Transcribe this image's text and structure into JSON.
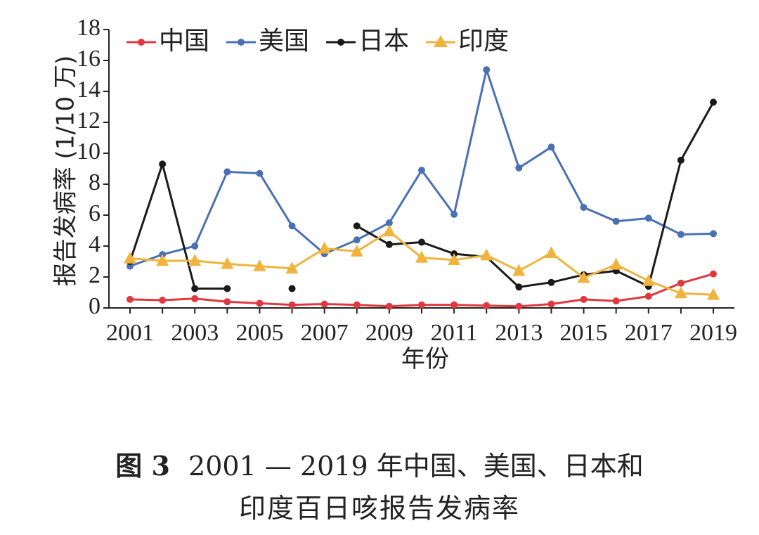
{
  "chart_data": {
    "type": "line",
    "xlabel": "年份",
    "ylabel": "报告发病率 (1/10 万)",
    "xlim": [
      2001,
      2019
    ],
    "ylim": [
      0,
      18
    ],
    "x_ticks": [
      "2001",
      "2003",
      "2005",
      "2007",
      "2009",
      "2011",
      "2013",
      "2015",
      "2017",
      "2019"
    ],
    "y_ticks": [
      "0",
      "2",
      "4",
      "6",
      "8",
      "10",
      "12",
      "14",
      "16",
      "18"
    ],
    "legend_position": "top",
    "grid": false,
    "x": [
      2001,
      2002,
      2003,
      2004,
      2005,
      2006,
      2007,
      2008,
      2009,
      2010,
      2011,
      2012,
      2013,
      2014,
      2015,
      2016,
      2017,
      2018,
      2019
    ],
    "series": [
      {
        "name": "中国",
        "color": "#e0383e",
        "marker": "circle",
        "values": [
          0.55,
          0.5,
          0.6,
          0.4,
          0.3,
          0.2,
          0.25,
          0.2,
          0.1,
          0.2,
          0.2,
          0.15,
          0.1,
          0.25,
          0.55,
          0.45,
          0.75,
          1.6,
          2.2
        ]
      },
      {
        "name": "美国",
        "color": "#4a70b4",
        "marker": "circle",
        "values": [
          2.7,
          3.45,
          4.0,
          8.8,
          8.7,
          5.3,
          3.5,
          4.4,
          5.5,
          8.9,
          6.05,
          15.4,
          9.05,
          10.4,
          6.5,
          5.6,
          5.8,
          4.75,
          4.8
        ]
      },
      {
        "name": "日本",
        "color": "#1a1a1a",
        "marker": "circle",
        "values": [
          3.0,
          9.3,
          1.25,
          1.25,
          null,
          1.25,
          null,
          5.3,
          4.1,
          4.25,
          3.5,
          3.3,
          1.35,
          1.65,
          2.15,
          2.4,
          1.4,
          9.55,
          13.3
        ]
      },
      {
        "name": "印度",
        "color": "#f0b43c",
        "marker": "triangle",
        "values": [
          3.2,
          3.05,
          3.05,
          2.85,
          2.7,
          2.55,
          3.85,
          3.65,
          4.95,
          3.25,
          3.1,
          3.4,
          2.4,
          3.55,
          1.95,
          2.8,
          1.75,
          0.95,
          0.85
        ]
      }
    ]
  },
  "caption": {
    "label": "图 3",
    "line1": "2001 — 2019 年中国、美国、日本和",
    "line2": "印度百日咳报告发病率"
  }
}
